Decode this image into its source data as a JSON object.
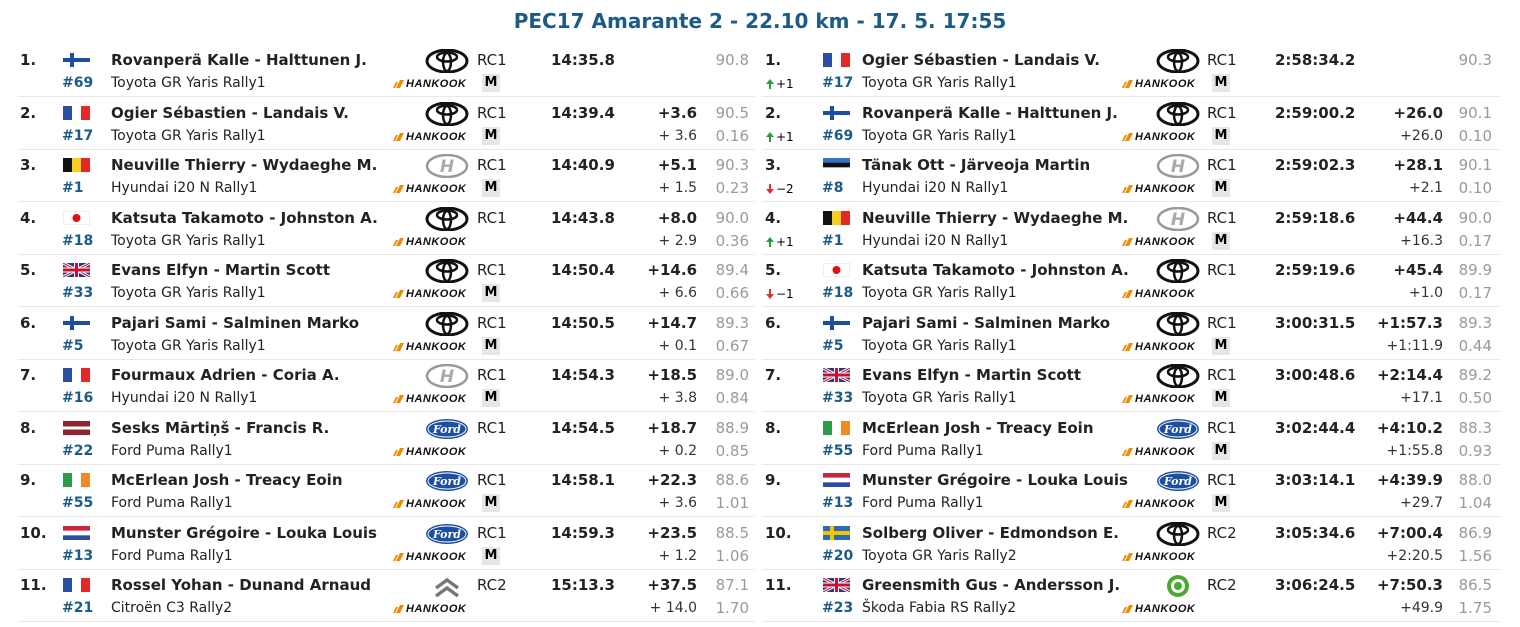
{
  "title": "PEC17 Amarante 2 - 22.10 km - 17. 5. 17:55",
  "tables": [
    {
      "rows": [
        {
          "pos": "1.",
          "flag": "FIN",
          "number": "#69",
          "crew": "Rovanperä Kalle - Halttunen J.",
          "car": "Toyota GR Yaris Rally1",
          "tyre": "HANKOOK",
          "class": "RC1",
          "badge": "M",
          "time": "14:35.8",
          "speed": "90.8"
        },
        {
          "pos": "2.",
          "flag": "FRA",
          "number": "#17",
          "crew": "Ogier Sébastien - Landais V.",
          "car": "Toyota GR Yaris Rally1",
          "tyre": "HANKOOK",
          "class": "RC1",
          "badge": "M",
          "time": "14:39.4",
          "diff": "+3.6",
          "speed": "90.5",
          "diff_prev": "+ 3.6",
          "per_km": "0.16"
        },
        {
          "pos": "3.",
          "flag": "BEL",
          "number": "#1",
          "crew": "Neuville Thierry - Wydaeghe M.",
          "car": "Hyundai i20 N Rally1",
          "tyre": "HANKOOK",
          "class": "RC1",
          "badge": "M",
          "time": "14:40.9",
          "diff": "+5.1",
          "speed": "90.3",
          "diff_prev": "+ 1.5",
          "per_km": "0.23"
        },
        {
          "pos": "4.",
          "flag": "JPN",
          "number": "#18",
          "crew": "Katsuta Takamoto - Johnston A.",
          "car": "Toyota GR Yaris Rally1",
          "tyre": "HANKOOK",
          "class": "RC1",
          "time": "14:43.8",
          "diff": "+8.0",
          "speed": "90.0",
          "diff_prev": "+ 2.9",
          "per_km": "0.36"
        },
        {
          "pos": "5.",
          "flag": "GBR",
          "number": "#33",
          "crew": "Evans Elfyn - Martin Scott",
          "car": "Toyota GR Yaris Rally1",
          "tyre": "HANKOOK",
          "class": "RC1",
          "badge": "M",
          "time": "14:50.4",
          "diff": "+14.6",
          "speed": "89.4",
          "diff_prev": "+ 6.6",
          "per_km": "0.66"
        },
        {
          "pos": "6.",
          "flag": "FIN",
          "number": "#5",
          "crew": "Pajari Sami - Salminen Marko",
          "car": "Toyota GR Yaris Rally1",
          "tyre": "HANKOOK",
          "class": "RC1",
          "badge": "M",
          "time": "14:50.5",
          "diff": "+14.7",
          "speed": "89.3",
          "diff_prev": "+ 0.1",
          "per_km": "0.67"
        },
        {
          "pos": "7.",
          "flag": "FRA",
          "number": "#16",
          "crew": "Fourmaux Adrien - Coria A.",
          "car": "Hyundai i20 N Rally1",
          "tyre": "HANKOOK",
          "class": "RC1",
          "badge": "M",
          "time": "14:54.3",
          "diff": "+18.5",
          "speed": "89.0",
          "diff_prev": "+ 3.8",
          "per_km": "0.84"
        },
        {
          "pos": "8.",
          "flag": "LAT",
          "number": "#22",
          "crew": "Sesks Mārtiņš - Francis R.",
          "car": "Ford Puma Rally1",
          "tyre": "HANKOOK",
          "class": "RC1",
          "time": "14:54.5",
          "diff": "+18.7",
          "speed": "88.9",
          "diff_prev": "+ 0.2",
          "per_km": "0.85"
        },
        {
          "pos": "9.",
          "flag": "IRL",
          "number": "#55",
          "crew": "McErlean Josh - Treacy Eoin",
          "car": "Ford Puma Rally1",
          "tyre": "HANKOOK",
          "class": "RC1",
          "badge": "M",
          "time": "14:58.1",
          "diff": "+22.3",
          "speed": "88.6",
          "diff_prev": "+ 3.6",
          "per_km": "1.01"
        },
        {
          "pos": "10.",
          "flag": "NED",
          "number": "#13",
          "crew": "Munster Grégoire - Louka Louis",
          "car": "Ford Puma Rally1",
          "tyre": "HANKOOK",
          "class": "RC1",
          "badge": "M",
          "time": "14:59.3",
          "diff": "+23.5",
          "speed": "88.5",
          "diff_prev": "+ 1.2",
          "per_km": "1.06"
        },
        {
          "pos": "11.",
          "flag": "FRA",
          "number": "#21",
          "crew": "Rossel Yohan - Dunand Arnaud",
          "car": "Citroën C3 Rally2",
          "tyre": "HANKOOK",
          "class": "RC2",
          "time": "15:13.3",
          "diff": "+37.5",
          "speed": "87.1",
          "diff_prev": "+ 14.0",
          "per_km": "1.70"
        }
      ]
    },
    {
      "rows": [
        {
          "pos": "1.",
          "change": "+1",
          "flag": "FRA",
          "number": "#17",
          "crew": "Ogier Sébastien - Landais V.",
          "car": "Toyota GR Yaris Rally1",
          "tyre": "HANKOOK",
          "class": "RC1",
          "badge": "M",
          "time": "2:58:34.2",
          "speed": "90.3"
        },
        {
          "pos": "2.",
          "change": "+1",
          "flag": "FIN",
          "number": "#69",
          "crew": "Rovanperä Kalle - Halttunen J.",
          "car": "Toyota GR Yaris Rally1",
          "tyre": "HANKOOK",
          "class": "RC1",
          "badge": "M",
          "time": "2:59:00.2",
          "diff": "+26.0",
          "speed": "90.1",
          "diff_prev": "+26.0",
          "per_km": "0.10"
        },
        {
          "pos": "3.",
          "change": "−2",
          "flag": "EST",
          "number": "#8",
          "crew": "Tänak Ott - Järveoja Martin",
          "car": "Hyundai i20 N Rally1",
          "tyre": "HANKOOK",
          "class": "RC1",
          "badge": "M",
          "time": "2:59:02.3",
          "diff": "+28.1",
          "speed": "90.1",
          "diff_prev": "+2.1",
          "per_km": "0.10"
        },
        {
          "pos": "4.",
          "change": "+1",
          "flag": "BEL",
          "number": "#1",
          "crew": "Neuville Thierry - Wydaeghe M.",
          "car": "Hyundai i20 N Rally1",
          "tyre": "HANKOOK",
          "class": "RC1",
          "badge": "M",
          "time": "2:59:18.6",
          "diff": "+44.4",
          "speed": "90.0",
          "diff_prev": "+16.3",
          "per_km": "0.17"
        },
        {
          "pos": "5.",
          "change": "−1",
          "flag": "JPN",
          "number": "#18",
          "crew": "Katsuta Takamoto - Johnston A.",
          "car": "Toyota GR Yaris Rally1",
          "tyre": "HANKOOK",
          "class": "RC1",
          "time": "2:59:19.6",
          "diff": "+45.4",
          "speed": "89.9",
          "diff_prev": "+1.0",
          "per_km": "0.17"
        },
        {
          "pos": "6.",
          "flag": "FIN",
          "number": "#5",
          "crew": "Pajari Sami - Salminen Marko",
          "car": "Toyota GR Yaris Rally1",
          "tyre": "HANKOOK",
          "class": "RC1",
          "badge": "M",
          "time": "3:00:31.5",
          "diff": "+1:57.3",
          "speed": "89.3",
          "diff_prev": "+1:11.9",
          "per_km": "0.44"
        },
        {
          "pos": "7.",
          "flag": "GBR",
          "number": "#33",
          "crew": "Evans Elfyn - Martin Scott",
          "car": "Toyota GR Yaris Rally1",
          "tyre": "HANKOOK",
          "class": "RC1",
          "badge": "M",
          "time": "3:00:48.6",
          "diff": "+2:14.4",
          "speed": "89.2",
          "diff_prev": "+17.1",
          "per_km": "0.50"
        },
        {
          "pos": "8.",
          "flag": "IRL",
          "number": "#55",
          "crew": "McErlean Josh - Treacy Eoin",
          "car": "Ford Puma Rally1",
          "tyre": "HANKOOK",
          "class": "RC1",
          "badge": "M",
          "time": "3:02:44.4",
          "diff": "+4:10.2",
          "speed": "88.3",
          "diff_prev": "+1:55.8",
          "per_km": "0.93"
        },
        {
          "pos": "9.",
          "flag": "NED",
          "number": "#13",
          "crew": "Munster Grégoire - Louka Louis",
          "car": "Ford Puma Rally1",
          "tyre": "HANKOOK",
          "class": "RC1",
          "badge": "M",
          "time": "3:03:14.1",
          "diff": "+4:39.9",
          "speed": "88.0",
          "diff_prev": "+29.7",
          "per_km": "1.04"
        },
        {
          "pos": "10.",
          "flag": "SWE",
          "number": "#20",
          "crew": "Solberg Oliver - Edmondson E.",
          "car": "Toyota GR Yaris Rally2",
          "tyre": "HANKOOK",
          "class": "RC2",
          "time": "3:05:34.6",
          "diff": "+7:00.4",
          "speed": "86.9",
          "diff_prev": "+2:20.5",
          "per_km": "1.56"
        },
        {
          "pos": "11.",
          "flag": "GBR",
          "number": "#23",
          "crew": "Greensmith Gus - Andersson J.",
          "car": "Škoda Fabia RS Rally2",
          "tyre": "HANKOOK",
          "class": "RC2",
          "time": "3:06:24.5",
          "diff": "+7:50.3",
          "speed": "86.5",
          "diff_prev": "+49.9",
          "per_km": "1.75"
        }
      ]
    }
  ]
}
